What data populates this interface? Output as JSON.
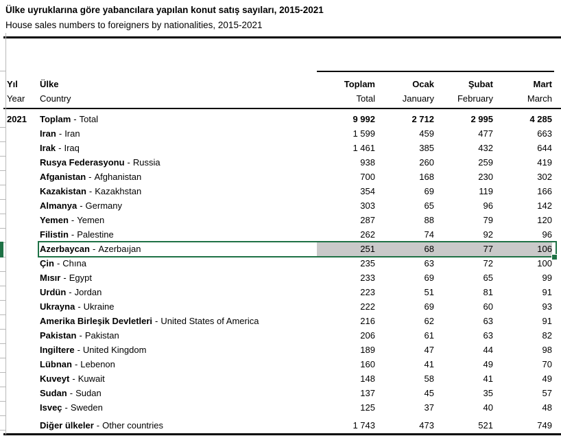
{
  "title": "Ülke uyruklarına göre yabancılara yapılan konut satış sayıları, 2015-2021",
  "subtitle": "House sales numbers to foreigners by nationalities, 2015-2021",
  "sep": "-",
  "colors": {
    "selection_green": "#1e7145",
    "highlight_gray": "#c9c9c9",
    "gridline_gray": "#b8b8b8"
  },
  "header": {
    "year": {
      "tr": "Yıl",
      "en": "Year"
    },
    "country": {
      "tr": "Ülke",
      "en": "Country"
    },
    "total": {
      "tr": "Toplam",
      "en": "Total"
    },
    "jan": {
      "tr": "Ocak",
      "en": "January"
    },
    "feb": {
      "tr": "Şubat",
      "en": "February"
    },
    "mar": {
      "tr": "Mart",
      "en": "March"
    }
  },
  "table": {
    "year": "2021",
    "selected_row": "Azerbaycan - Azerbaıjan",
    "rows": [
      {
        "year": "2021",
        "tr": "Toplam",
        "en": "Total",
        "total": "9 992",
        "jan": "2 712",
        "feb": "2 995",
        "mar": "4 285"
      },
      {
        "tr": "Iran",
        "en": "Iran",
        "total": "1 599",
        "jan": "459",
        "feb": "477",
        "mar": "663"
      },
      {
        "tr": "Irak",
        "en": "Iraq",
        "total": "1 461",
        "jan": "385",
        "feb": "432",
        "mar": "644"
      },
      {
        "tr": "Rusya Federasyonu",
        "en": "Russia",
        "total": "938",
        "jan": "260",
        "feb": "259",
        "mar": "419"
      },
      {
        "tr": "Afganistan",
        "en": "Afghanistan",
        "total": "700",
        "jan": "168",
        "feb": "230",
        "mar": "302"
      },
      {
        "tr": "Kazakistan",
        "en": "Kazakhstan",
        "total": "354",
        "jan": "69",
        "feb": "119",
        "mar": "166"
      },
      {
        "tr": "Almanya",
        "en": "Germany",
        "total": "303",
        "jan": "65",
        "feb": "96",
        "mar": "142"
      },
      {
        "tr": "Yemen",
        "en": "Yemen",
        "total": "287",
        "jan": "88",
        "feb": "79",
        "mar": "120"
      },
      {
        "tr": "Filistin",
        "en": "Palestine",
        "total": "262",
        "jan": "74",
        "feb": "92",
        "mar": "96"
      },
      {
        "tr": "Azerbaycan",
        "en": "Azerbaıjan",
        "total": "251",
        "jan": "68",
        "feb": "77",
        "mar": "106"
      },
      {
        "tr": "Çin",
        "en": "Chına",
        "total": "235",
        "jan": "63",
        "feb": "72",
        "mar": "100"
      },
      {
        "tr": "Mısır",
        "en": "Egypt",
        "total": "233",
        "jan": "69",
        "feb": "65",
        "mar": "99"
      },
      {
        "tr": "Urdün",
        "en": "Jordan",
        "total": "223",
        "jan": "51",
        "feb": "81",
        "mar": "91"
      },
      {
        "tr": "Ukrayna",
        "en": "Ukraine",
        "total": "222",
        "jan": "69",
        "feb": "60",
        "mar": "93"
      },
      {
        "tr": "Amerika Birleşik Devletleri",
        "en": "United States of America",
        "total": "216",
        "jan": "62",
        "feb": "63",
        "mar": "91"
      },
      {
        "tr": "Pakistan",
        "en": "Pakistan",
        "total": "206",
        "jan": "61",
        "feb": "63",
        "mar": "82"
      },
      {
        "tr": "Ingiltere",
        "en": "United Kingdom",
        "total": "189",
        "jan": "47",
        "feb": "44",
        "mar": "98"
      },
      {
        "tr": "Lübnan",
        "en": "Lebenon",
        "total": "160",
        "jan": "41",
        "feb": "49",
        "mar": "70"
      },
      {
        "tr": "Kuveyt",
        "en": "Kuwait",
        "total": "148",
        "jan": "58",
        "feb": "41",
        "mar": "49"
      },
      {
        "tr": "Sudan",
        "en": "Sudan",
        "total": "137",
        "jan": "45",
        "feb": "35",
        "mar": "57"
      },
      {
        "tr": "Isveç",
        "en": "Sweden",
        "total": "125",
        "jan": "37",
        "feb": "40",
        "mar": "48"
      },
      {
        "tr": "Diğer ülkeler",
        "en": "Other countries",
        "total": "1 743",
        "jan": "473",
        "feb": "521",
        "mar": "749"
      }
    ]
  }
}
